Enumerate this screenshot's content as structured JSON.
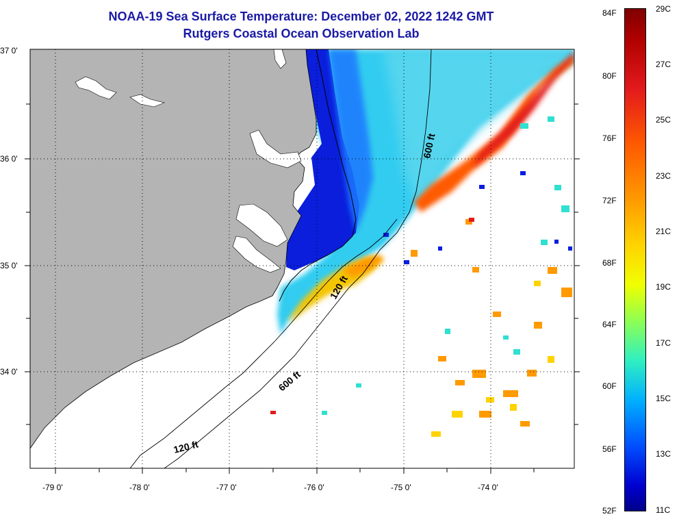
{
  "title_line1": "NOAA-19 Sea Surface Temperature:  December 02, 2022 1242 GMT",
  "title_line2": "Rutgers Coastal Ocean Observation Lab",
  "lat_labels": [
    "37 0'",
    "36 0'",
    "35 0'",
    "34 0'"
  ],
  "lon_labels": [
    "-79 0'",
    "-78 0'",
    "-77 0'",
    "-76 0'",
    "-75 0'",
    "-74 0'"
  ],
  "contour_labels": [
    "600 ft",
    "120 ft",
    "600 ft",
    "120 ft"
  ],
  "colorbar": {
    "fahrenheit": [
      "84F",
      "80F",
      "76F",
      "72F",
      "68F",
      "64F",
      "60F",
      "56F",
      "52F"
    ],
    "celsius": [
      "29C",
      "27C",
      "25C",
      "23C",
      "21C",
      "19C",
      "17C",
      "15C",
      "13C",
      "11C"
    ]
  },
  "colors": {
    "land": "#b4b4b4",
    "title": "#1a1aa6",
    "cold": "#0a1edc",
    "warm": "#ff5a00"
  }
}
